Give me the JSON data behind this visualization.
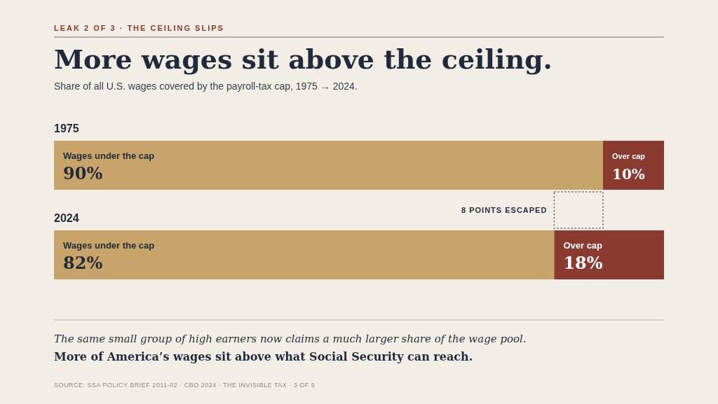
{
  "chart_data": {
    "type": "bar",
    "orientation": "horizontal",
    "stacked": true,
    "title": "More wages sit above the ceiling.",
    "subtitle": "Share of all U.S. wages covered by the payroll-tax cap, 1975 → 2024.",
    "categories": [
      "1975",
      "2024"
    ],
    "xlim": [
      0,
      100
    ],
    "tick_labels": "y",
    "series": [
      {
        "name": "Wages under the cap",
        "color": "#c8a46b",
        "values": [
          90,
          82
        ],
        "value_labels": [
          "90%",
          "82%"
        ]
      },
      {
        "name": "Over cap",
        "color": "#8b3a2f",
        "values": [
          10,
          18
        ],
        "value_labels": [
          "10%",
          "18%"
        ]
      }
    ],
    "annotations": [
      "LEAK 2 OF 3 · THE CEILING SLIPS",
      "8 POINTS ESCAPED",
      "The same small group of high earners now claims a much larger share of the wage pool.",
      "More of America’s wages sit above what Social Security can reach.",
      "SOURCE: SSA POLICY BRIEF 2011-02 · CBO 2024 · THE INVISIBLE TAX · 3 OF 5"
    ]
  }
}
